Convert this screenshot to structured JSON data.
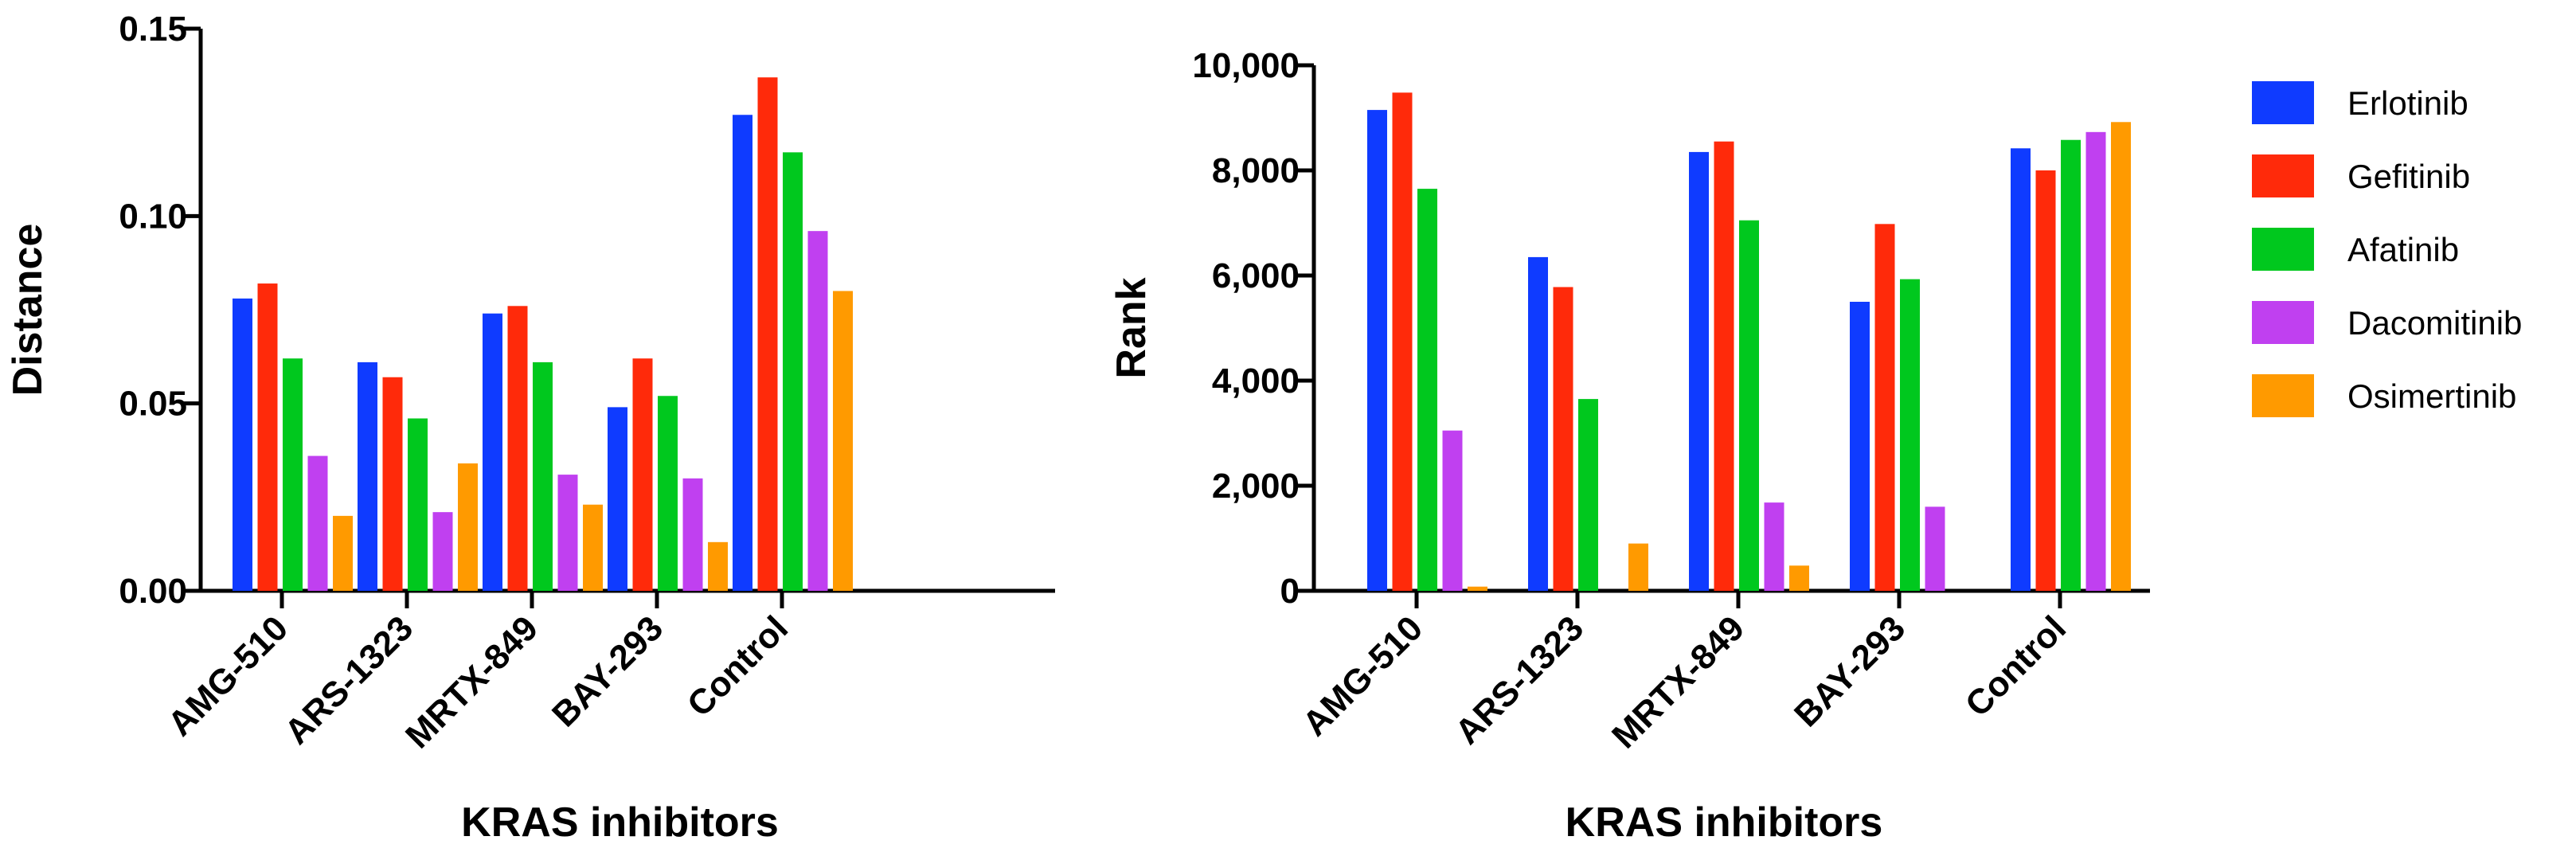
{
  "colors": {
    "Erlotinib": "#0f3bff",
    "Gefitinib": "#ff2a0a",
    "Afatinib": "#00c81e",
    "Dacomitinib": "#c040f0",
    "Osimertinib": "#ff9a00"
  },
  "legend": {
    "placement": "right",
    "entries": [
      "Erlotinib",
      "Gefitinib",
      "Afatinib",
      "Dacomitinib",
      "Osimertinib"
    ]
  },
  "chart_data": [
    {
      "type": "bar",
      "xlabel": "KRAS inhibitors",
      "ylabel": "Distance",
      "ylim": [
        0,
        0.15
      ],
      "yticks": [
        "0.00",
        "0.05",
        "0.10",
        "0.15"
      ],
      "categories": [
        "AMG-510",
        "ARS-1323",
        "MRTX-849",
        "BAY-293",
        "Control"
      ],
      "series": [
        {
          "name": "Erlotinib",
          "values": [
            0.078,
            0.061,
            0.074,
            0.049,
            0.127
          ]
        },
        {
          "name": "Gefitinib",
          "values": [
            0.082,
            0.057,
            0.076,
            0.062,
            0.137
          ]
        },
        {
          "name": "Afatinib",
          "values": [
            0.062,
            0.046,
            0.061,
            0.052,
            0.117
          ]
        },
        {
          "name": "Dacomitinib",
          "values": [
            0.036,
            0.021,
            0.031,
            0.03,
            0.096
          ]
        },
        {
          "name": "Osimertinib",
          "values": [
            0.02,
            0.034,
            0.023,
            0.013,
            0.08
          ]
        }
      ]
    },
    {
      "type": "bar",
      "xlabel": "KRAS inhibitors",
      "ylabel": "Rank",
      "ylim": [
        0,
        10000
      ],
      "yticks": [
        "0",
        "2,000",
        "4,000",
        "6,000",
        "8,000",
        "10,000"
      ],
      "categories": [
        "AMG-510",
        "ARS-1323",
        "MRTX-849",
        "BAY-293",
        "Control"
      ],
      "series": [
        {
          "name": "Erlotinib",
          "values": [
            9150,
            6350,
            8350,
            5500,
            8420
          ]
        },
        {
          "name": "Gefitinib",
          "values": [
            9480,
            5780,
            8550,
            6980,
            8000
          ]
        },
        {
          "name": "Afatinib",
          "values": [
            7650,
            3650,
            7050,
            5930,
            8580
          ]
        },
        {
          "name": "Dacomitinib",
          "values": [
            3050,
            0,
            1680,
            1600,
            8730
          ]
        },
        {
          "name": "Osimertinib",
          "values": [
            80,
            900,
            480,
            0,
            8920
          ]
        }
      ]
    }
  ]
}
